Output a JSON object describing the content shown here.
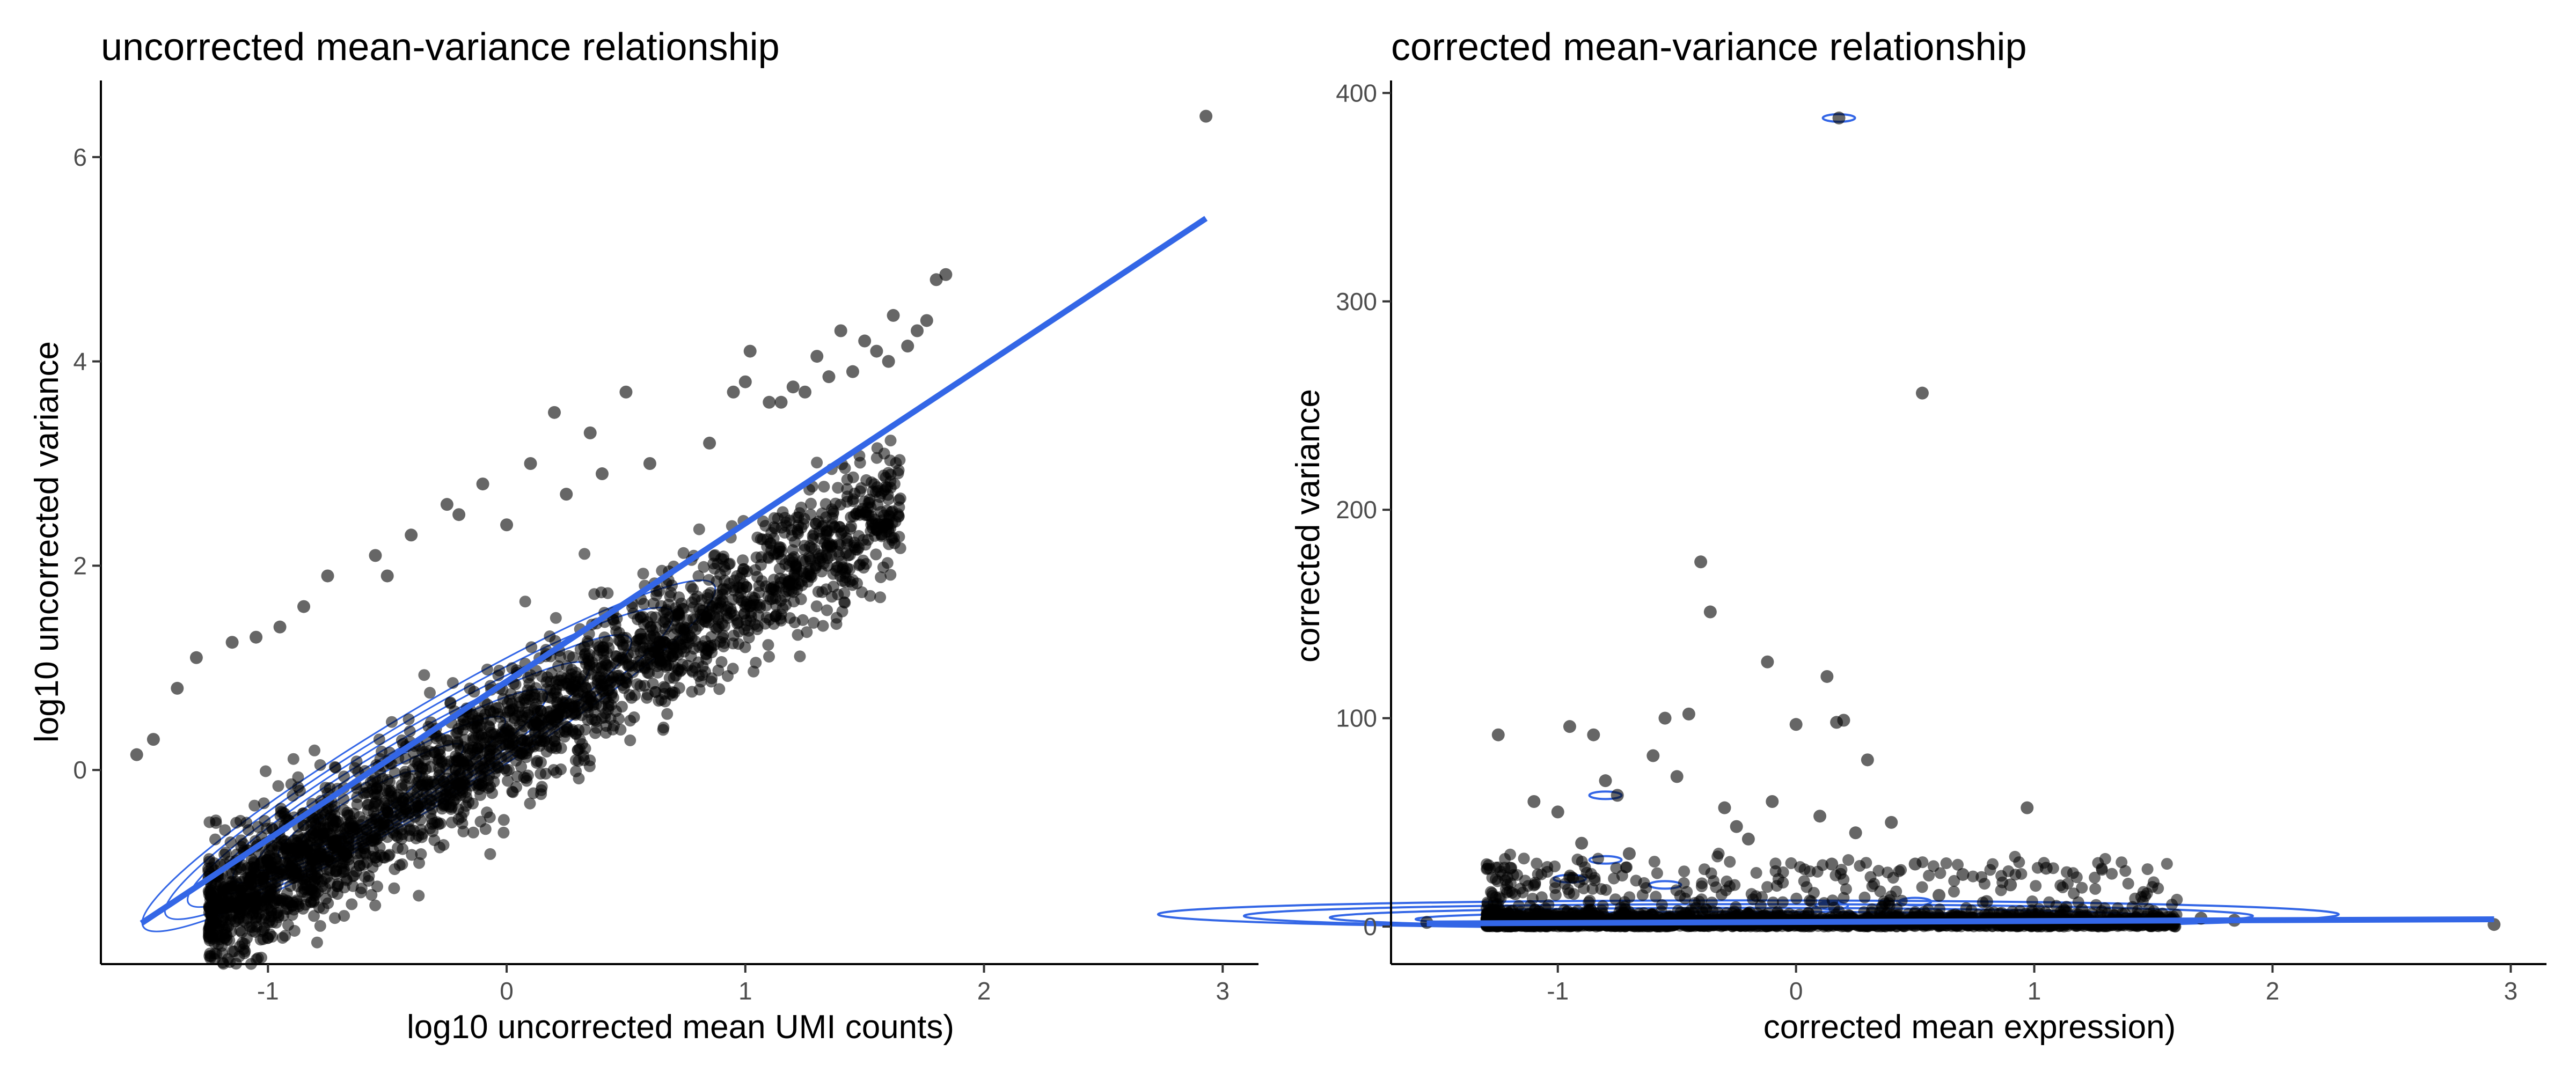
{
  "chart_data": [
    {
      "type": "scatter",
      "title": "uncorrected mean-variance relationship",
      "xlabel": "log10 uncorrected mean UMI counts)",
      "ylabel": "log10 uncorrected variance",
      "xlim": [
        -1.7,
        3.15
      ],
      "ylim": [
        -1.9,
        6.75
      ],
      "x_ticks": [
        -1,
        0,
        1,
        2,
        3
      ],
      "y_ticks": [
        0,
        2,
        4,
        6
      ],
      "grid": false,
      "point_color": "#000000",
      "fit_color": "#3366e6",
      "density_color": "#3366e6",
      "fit_line": {
        "x": [
          -1.53,
          2.93
        ],
        "y": [
          -1.5,
          5.4
        ]
      },
      "density_center": {
        "x": -0.65,
        "y": -0.45
      },
      "points": {
        "x": [
          2.93,
          1.84,
          1.8,
          1.62,
          1.72,
          1.76,
          1.5,
          1.55,
          1.6,
          1.68,
          1.4,
          1.45,
          1.35,
          1.3,
          1.25,
          1.2,
          1.1,
          1.02,
          1.0,
          0.95,
          0.5,
          0.35,
          0.2,
          0.1,
          -0.1,
          -0.2,
          -0.4,
          -0.55,
          -0.75,
          -0.85,
          -0.95,
          -1.05,
          -1.15,
          -1.3,
          -1.38,
          -1.48,
          -1.55,
          0.6,
          0.4,
          0.25,
          0.0,
          -0.25,
          -0.5,
          1.15,
          0.85
        ],
        "y": [
          6.4,
          4.85,
          4.8,
          4.45,
          4.3,
          4.4,
          4.2,
          4.1,
          4.0,
          4.15,
          4.3,
          3.9,
          3.85,
          4.05,
          3.7,
          3.75,
          3.6,
          4.1,
          3.8,
          3.7,
          3.7,
          3.3,
          3.5,
          3.0,
          2.8,
          2.5,
          2.3,
          2.1,
          1.9,
          1.6,
          1.4,
          1.3,
          1.25,
          1.1,
          0.8,
          0.3,
          0.15,
          3.0,
          2.9,
          2.7,
          2.4,
          2.6,
          1.9,
          3.6,
          3.2
        ]
      }
    },
    {
      "type": "scatter",
      "title": "corrected mean-variance relationship",
      "xlabel": "corrected mean expression)",
      "ylabel": "corrected variance",
      "xlim": [
        -1.7,
        3.15
      ],
      "ylim": [
        -18,
        406
      ],
      "x_ticks": [
        -1,
        0,
        1,
        2,
        3
      ],
      "y_ticks": [
        0,
        100,
        200,
        300,
        400
      ],
      "grid": false,
      "point_color": "#000000",
      "fit_color": "#3366e6",
      "density_color": "#3366e6",
      "fit_line": {
        "x": [
          -1.55,
          2.93
        ],
        "y": [
          1.5,
          3.5
        ]
      },
      "points": {
        "x": [
          0.18,
          0.53,
          -0.4,
          -0.36,
          -0.12,
          0.13,
          0.17,
          -0.95,
          -0.85,
          -0.8,
          -0.75,
          -0.6,
          -0.55,
          -0.5,
          -0.45,
          -0.3,
          -0.25,
          -0.1,
          0.0,
          0.1,
          0.2,
          0.25,
          0.3,
          0.4,
          0.5,
          0.7,
          0.9,
          0.97,
          1.05,
          1.2,
          -1.0,
          -1.1,
          -1.2,
          -1.25,
          1.5,
          1.7,
          1.84,
          2.93,
          -1.55,
          -0.9,
          -0.7,
          0.6,
          0.8,
          -0.2,
          0.15
        ],
        "y": [
          388,
          256,
          175,
          151,
          127,
          120,
          98,
          96,
          92,
          70,
          63,
          82,
          100,
          72,
          102,
          57,
          48,
          60,
          97,
          53,
          99,
          45,
          80,
          50,
          30,
          25,
          20,
          57,
          28,
          8,
          55,
          60,
          28,
          92,
          5,
          4,
          3,
          1,
          2,
          40,
          35,
          15,
          12,
          42,
          30
        ]
      }
    }
  ]
}
